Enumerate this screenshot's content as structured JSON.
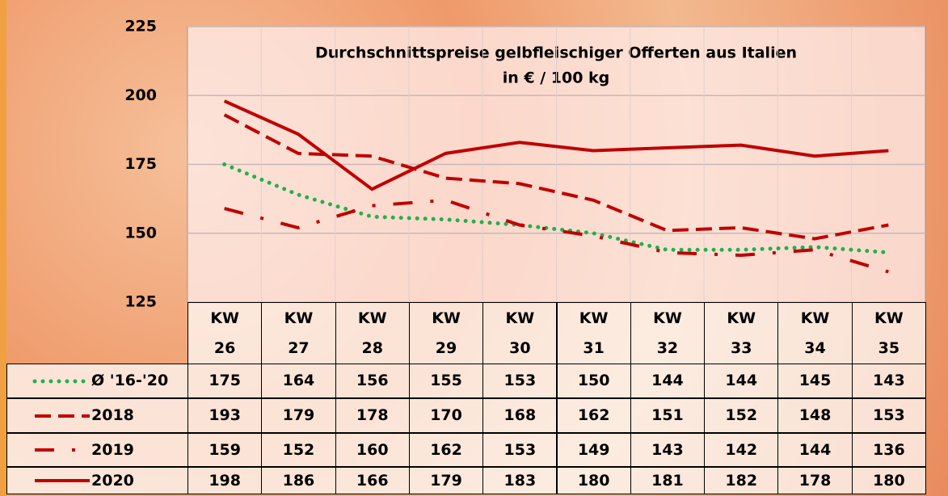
{
  "chart_data": {
    "type": "line",
    "title": "Durchschnittspreise gelbfleischiger Offerten aus Italien",
    "subtitle": "in € / 100 kg",
    "categories": [
      "KW\n26",
      "KW\n27",
      "KW\n28",
      "KW\n29",
      "KW\n30",
      "KW\n31",
      "KW\n32",
      "KW\n33",
      "KW\n34",
      "KW\n35"
    ],
    "series": [
      {
        "name": "Ø '16-'20",
        "color": "#1fb050",
        "style": "dotted",
        "values": [
          175,
          164,
          156,
          155,
          153,
          150,
          144,
          144,
          145,
          143
        ]
      },
      {
        "name": "2018",
        "color": "#c00000",
        "style": "dashed",
        "values": [
          193,
          179,
          178,
          170,
          168,
          162,
          151,
          152,
          148,
          153
        ]
      },
      {
        "name": "2019",
        "color": "#c00000",
        "style": "dashdot",
        "values": [
          159,
          152,
          160,
          162,
          153,
          149,
          143,
          142,
          144,
          136
        ]
      },
      {
        "name": "2020",
        "color": "#c00000",
        "style": "solid",
        "values": [
          198,
          186,
          166,
          179,
          183,
          180,
          181,
          182,
          178,
          180
        ]
      }
    ],
    "ylim": [
      125,
      225
    ],
    "yticks": [
      125,
      150,
      175,
      200,
      225
    ],
    "grid": true
  }
}
